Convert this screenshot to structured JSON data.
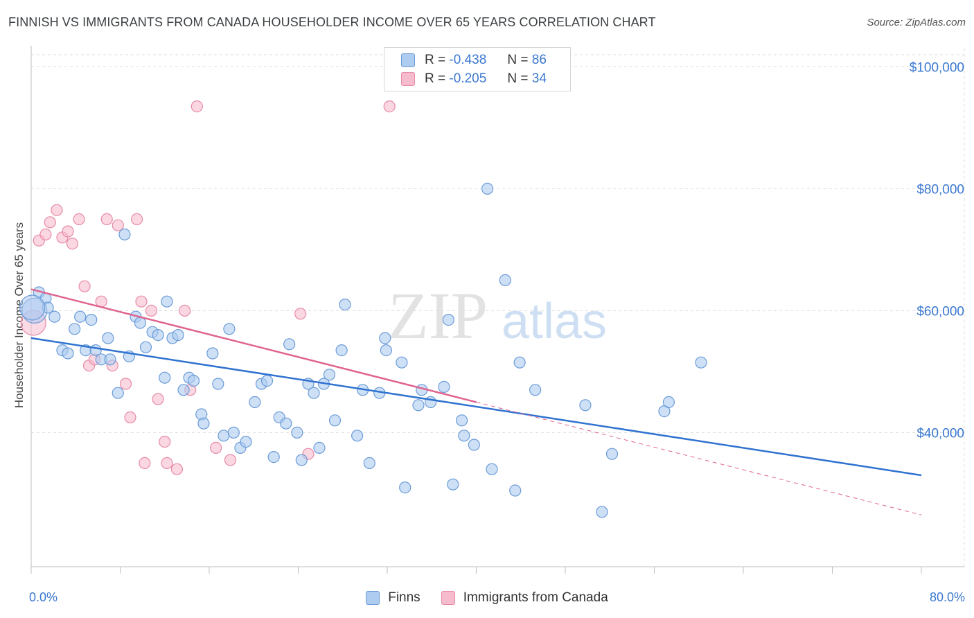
{
  "header": {
    "title": "FINNISH VS IMMIGRANTS FROM CANADA HOUSEHOLDER INCOME OVER 65 YEARS CORRELATION CHART",
    "source": "Source: ZipAtlas.com"
  },
  "watermark": {
    "zip": "ZIP",
    "atlas": "atlas"
  },
  "legend": {
    "series": [
      {
        "name": "Finns",
        "r_label": "R = ",
        "r_value": "-0.438",
        "n_label": "N = ",
        "n_value": "86",
        "fill": "#aecbf0",
        "stroke": "#6a9bd8"
      },
      {
        "name": "Immigrants from Canada",
        "r_label": "R = ",
        "r_value": "-0.205",
        "n_label": "N = ",
        "n_value": "34",
        "fill": "#f6bccd",
        "stroke": "#e78aa7"
      }
    ]
  },
  "colors": {
    "finns_line": "#2f72d0",
    "canada_line": "#e0648f",
    "tick_text": "#3a78d0",
    "grid": "#dddddd"
  },
  "chart_data": {
    "type": "scatter",
    "title": "FINNISH VS IMMIGRANTS FROM CANADA HOUSEHOLDER INCOME OVER 65 YEARS CORRELATION CHART",
    "xlabel": "",
    "ylabel": "Householder Income Over 65 years",
    "xlim": [
      0,
      80
    ],
    "ylim": [
      18000,
      103000
    ],
    "x_tick_labels": [
      "0.0%",
      "80.0%"
    ],
    "y_ticks": [
      40000,
      60000,
      80000,
      100000
    ],
    "y_tick_labels": [
      "$40,000",
      "$60,000",
      "$80,000",
      "$100,000"
    ],
    "grid": true,
    "legend_position": "top-center",
    "series": [
      {
        "name": "Finns",
        "points": [
          [
            0.3,
            60000
          ],
          [
            0.7,
            63000
          ],
          [
            1.3,
            62000
          ],
          [
            1.5,
            60500
          ],
          [
            2.1,
            59000
          ],
          [
            2.8,
            53500
          ],
          [
            3.3,
            53000
          ],
          [
            3.9,
            57000
          ],
          [
            4.4,
            59000
          ],
          [
            4.9,
            53500
          ],
          [
            5.4,
            58500
          ],
          [
            5.8,
            53500
          ],
          [
            6.3,
            52000
          ],
          [
            6.9,
            55500
          ],
          [
            7.1,
            52000
          ],
          [
            7.8,
            46500
          ],
          [
            8.4,
            72500
          ],
          [
            8.8,
            52500
          ],
          [
            9.4,
            59000
          ],
          [
            9.8,
            58000
          ],
          [
            10.3,
            54000
          ],
          [
            10.9,
            56500
          ],
          [
            11.4,
            56000
          ],
          [
            12.0,
            49000
          ],
          [
            12.2,
            61500
          ],
          [
            12.7,
            55500
          ],
          [
            13.2,
            56000
          ],
          [
            13.7,
            47000
          ],
          [
            14.2,
            49000
          ],
          [
            14.6,
            48500
          ],
          [
            15.3,
            43000
          ],
          [
            15.5,
            41500
          ],
          [
            16.3,
            53000
          ],
          [
            16.8,
            48000
          ],
          [
            17.3,
            39500
          ],
          [
            17.8,
            57000
          ],
          [
            18.2,
            40000
          ],
          [
            18.8,
            37500
          ],
          [
            19.3,
            38500
          ],
          [
            20.1,
            45000
          ],
          [
            20.7,
            48000
          ],
          [
            21.2,
            48500
          ],
          [
            21.8,
            36000
          ],
          [
            22.3,
            42500
          ],
          [
            22.9,
            41500
          ],
          [
            23.2,
            54500
          ],
          [
            23.9,
            40000
          ],
          [
            24.3,
            35500
          ],
          [
            24.9,
            48000
          ],
          [
            25.4,
            46500
          ],
          [
            25.9,
            37500
          ],
          [
            26.3,
            48000
          ],
          [
            26.8,
            49500
          ],
          [
            27.3,
            42000
          ],
          [
            27.9,
            53500
          ],
          [
            28.2,
            61000
          ],
          [
            29.3,
            39500
          ],
          [
            29.8,
            47000
          ],
          [
            30.4,
            35000
          ],
          [
            31.3,
            46500
          ],
          [
            31.8,
            55500
          ],
          [
            31.9,
            53500
          ],
          [
            33.3,
            51500
          ],
          [
            33.6,
            31000
          ],
          [
            34.8,
            44500
          ],
          [
            35.1,
            47000
          ],
          [
            35.9,
            45000
          ],
          [
            37.1,
            47500
          ],
          [
            37.5,
            58500
          ],
          [
            37.9,
            31500
          ],
          [
            38.7,
            42000
          ],
          [
            38.9,
            39500
          ],
          [
            39.8,
            38000
          ],
          [
            41.0,
            80000
          ],
          [
            41.4,
            34000
          ],
          [
            42.6,
            65000
          ],
          [
            43.5,
            30500
          ],
          [
            43.9,
            51500
          ],
          [
            45.3,
            47000
          ],
          [
            49.8,
            44500
          ],
          [
            51.3,
            27000
          ],
          [
            52.2,
            36500
          ],
          [
            56.9,
            43500
          ],
          [
            57.3,
            45000
          ],
          [
            60.2,
            51500
          ],
          [
            0.1,
            60500
          ]
        ]
      },
      {
        "name": "Immigrants from Canada",
        "points": [
          [
            0.2,
            58000
          ],
          [
            0.7,
            71500
          ],
          [
            1.3,
            72500
          ],
          [
            1.7,
            74500
          ],
          [
            2.3,
            76500
          ],
          [
            2.8,
            72000
          ],
          [
            3.3,
            73000
          ],
          [
            3.7,
            71000
          ],
          [
            4.3,
            75000
          ],
          [
            4.8,
            64000
          ],
          [
            5.2,
            51000
          ],
          [
            5.7,
            52000
          ],
          [
            6.3,
            61500
          ],
          [
            6.8,
            75000
          ],
          [
            7.3,
            51000
          ],
          [
            7.8,
            74000
          ],
          [
            8.5,
            48000
          ],
          [
            8.9,
            42500
          ],
          [
            9.5,
            75000
          ],
          [
            9.9,
            61500
          ],
          [
            10.2,
            35000
          ],
          [
            10.8,
            60000
          ],
          [
            11.4,
            45500
          ],
          [
            12.0,
            38500
          ],
          [
            12.2,
            35000
          ],
          [
            13.1,
            34000
          ],
          [
            13.8,
            60000
          ],
          [
            14.3,
            47000
          ],
          [
            14.9,
            93500
          ],
          [
            16.6,
            37500
          ],
          [
            17.9,
            35500
          ],
          [
            24.2,
            59500
          ],
          [
            24.9,
            36500
          ],
          [
            32.2,
            93500
          ]
        ]
      }
    ],
    "trend_lines": [
      {
        "name": "Finns",
        "x": [
          0,
          80
        ],
        "y": [
          55500,
          33000
        ]
      },
      {
        "name": "Immigrants from Canada",
        "x": [
          0,
          40
        ],
        "y": [
          63500,
          45000
        ],
        "dashed_extension_to": [
          80,
          26500
        ]
      }
    ]
  }
}
